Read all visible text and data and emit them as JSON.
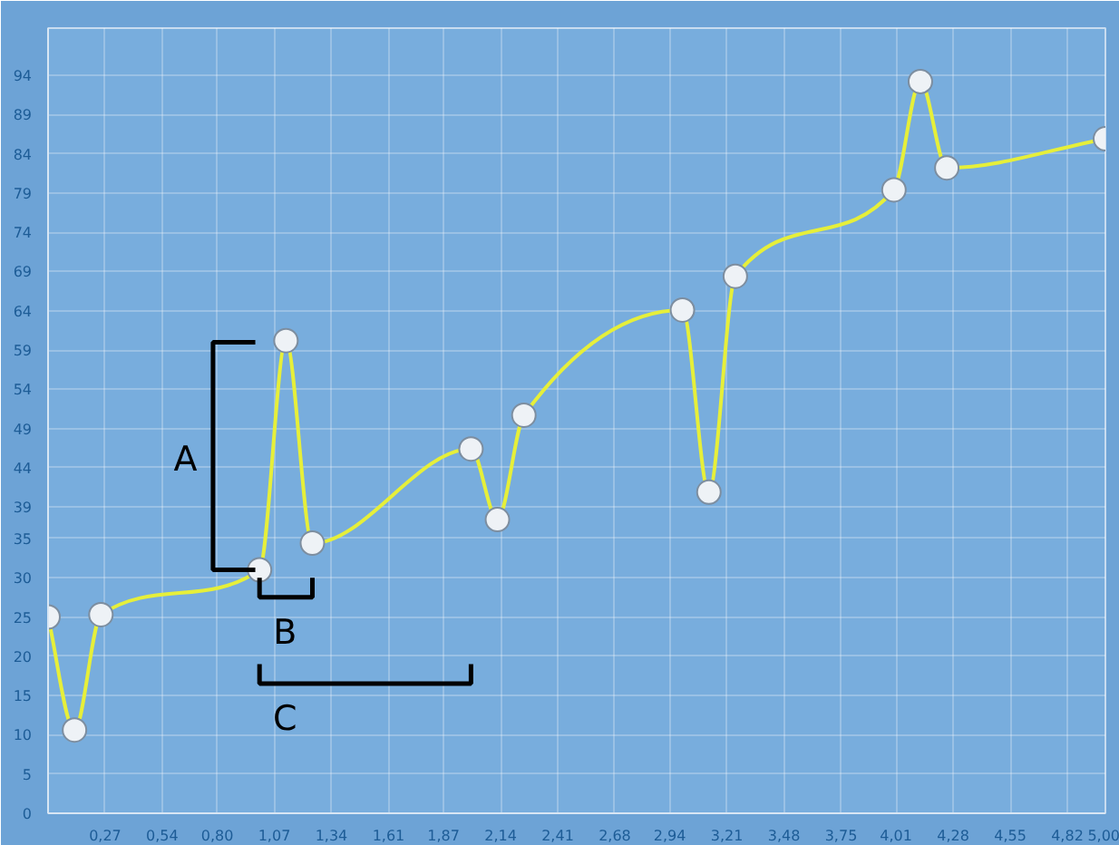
{
  "chart_data": {
    "type": "line",
    "x": [
      0,
      0.125,
      0.25,
      1,
      1.125,
      1.25,
      2,
      2.125,
      2.25,
      3,
      3.125,
      3.25,
      4,
      4.125,
      4.25,
      5
    ],
    "series": [
      {
        "color": "#e6ef3a",
        "values": [
          25,
          10.6,
          25.3,
          31,
          60.2,
          34.4,
          46.4,
          37.4,
          50.7,
          64.1,
          40.9,
          68.4,
          79.4,
          93.2,
          82.2,
          85.9
        ]
      }
    ],
    "xlim": [
      0,
      5
    ],
    "ylim": [
      0,
      100
    ],
    "xticks": [
      {
        "value": 0.27,
        "label": "0,27"
      },
      {
        "value": 0.54,
        "label": "0,54"
      },
      {
        "value": 0.8,
        "label": "0,80"
      },
      {
        "value": 1.07,
        "label": "1,07"
      },
      {
        "value": 1.34,
        "label": "1,34"
      },
      {
        "value": 1.61,
        "label": "1,61"
      },
      {
        "value": 1.87,
        "label": "1,87"
      },
      {
        "value": 2.14,
        "label": "2,14"
      },
      {
        "value": 2.41,
        "label": "2,41"
      },
      {
        "value": 2.68,
        "label": "2,68"
      },
      {
        "value": 2.94,
        "label": "2,94"
      },
      {
        "value": 3.21,
        "label": "3,21"
      },
      {
        "value": 3.48,
        "label": "3,48"
      },
      {
        "value": 3.75,
        "label": "3,75"
      },
      {
        "value": 4.01,
        "label": "4,01"
      },
      {
        "value": 4.28,
        "label": "4,28"
      },
      {
        "value": 4.55,
        "label": "4,55"
      },
      {
        "value": 4.82,
        "label": "4,82"
      },
      {
        "value": 5,
        "label": "5,00"
      }
    ],
    "yticks": [
      0,
      5,
      10,
      15,
      20,
      25,
      30,
      35,
      39,
      44,
      49,
      54,
      59,
      64,
      69,
      74,
      79,
      84,
      89,
      94
    ],
    "grid": true,
    "marker": "circle",
    "line_style": "solid",
    "annotations": [
      "A",
      "B",
      "C"
    ]
  }
}
